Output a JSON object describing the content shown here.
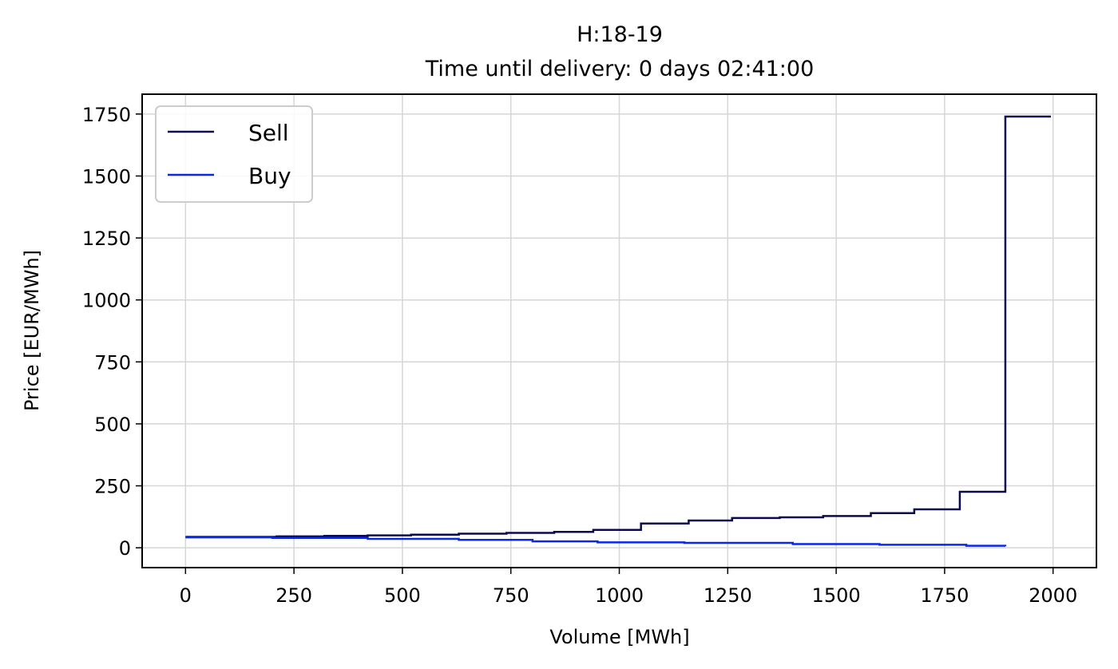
{
  "chart_data": {
    "type": "line",
    "step": "post",
    "title_lines": [
      "H:18-19",
      "Time until delivery: 0 days 02:41:00"
    ],
    "xlabel": "Volume [MWh]",
    "ylabel": "Price [EUR/MWh]",
    "xlim": [
      -100,
      2100
    ],
    "ylim": [
      -80,
      1830
    ],
    "x_ticks": [
      0,
      250,
      500,
      750,
      1000,
      1250,
      1500,
      1750,
      2000
    ],
    "y_ticks": [
      0,
      250,
      500,
      750,
      1000,
      1250,
      1500,
      1750
    ],
    "grid": true,
    "legend_position": "top-left",
    "series": [
      {
        "name": "Sell",
        "color": "#0a0a50",
        "x": [
          0,
          210,
          320,
          420,
          520,
          630,
          740,
          850,
          940,
          1050,
          1160,
          1260,
          1370,
          1470,
          1580,
          1680,
          1785,
          1890,
          1995
        ],
        "y": [
          44,
          46,
          48,
          50,
          53,
          57,
          60,
          64,
          72,
          98,
          110,
          120,
          123,
          128,
          140,
          155,
          226,
          1740,
          1740
        ]
      },
      {
        "name": "Buy",
        "color": "#0a27e6",
        "x": [
          0,
          200,
          420,
          630,
          800,
          950,
          1150,
          1400,
          1600,
          1800,
          1890
        ],
        "y": [
          42,
          40,
          36,
          32,
          26,
          22,
          20,
          15,
          12,
          8,
          6
        ]
      }
    ]
  }
}
